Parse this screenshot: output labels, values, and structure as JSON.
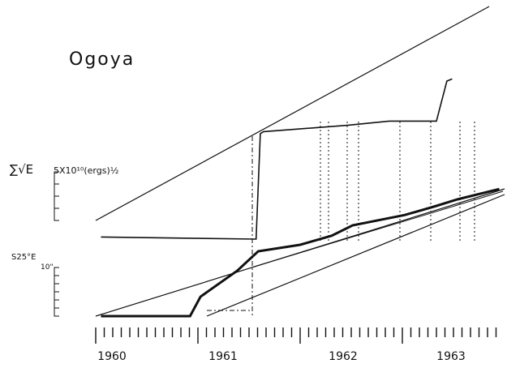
{
  "chart_data": {
    "type": "line",
    "title": "Ogoya",
    "xlabel": "",
    "ylabel": "",
    "x_ticks": [
      "1960",
      "1961",
      "1962",
      "1963"
    ],
    "xlim": [
      1959.65,
      1963.55
    ],
    "upper_axis": {
      "symbol": "∑√E",
      "label": "5X10¹⁰(ergs)½"
    },
    "lower_axis": {
      "label": "S25°E",
      "sub": "10\""
    },
    "series": [
      {
        "style": "strain-release-upper",
        "x": [
          1959.7,
          1961.18,
          1961.22,
          1961.25,
          1962.05,
          1962.45,
          1962.9,
          1963.0,
          1963.05
        ],
        "y": [
          0.02,
          0.0,
          1.0,
          1.02,
          1.08,
          1.12,
          1.12,
          1.5,
          1.52
        ]
      },
      {
        "style": "displacement-lower",
        "x": [
          1959.7,
          1960.55,
          1960.65,
          1961.0,
          1961.2,
          1961.6,
          1961.9,
          1962.1,
          1962.6,
          1962.9,
          1963.1,
          1963.5
        ],
        "y": [
          0.0,
          0.0,
          0.15,
          0.35,
          0.5,
          0.55,
          0.62,
          0.7,
          0.78,
          0.85,
          0.9,
          0.98
        ]
      }
    ]
  }
}
